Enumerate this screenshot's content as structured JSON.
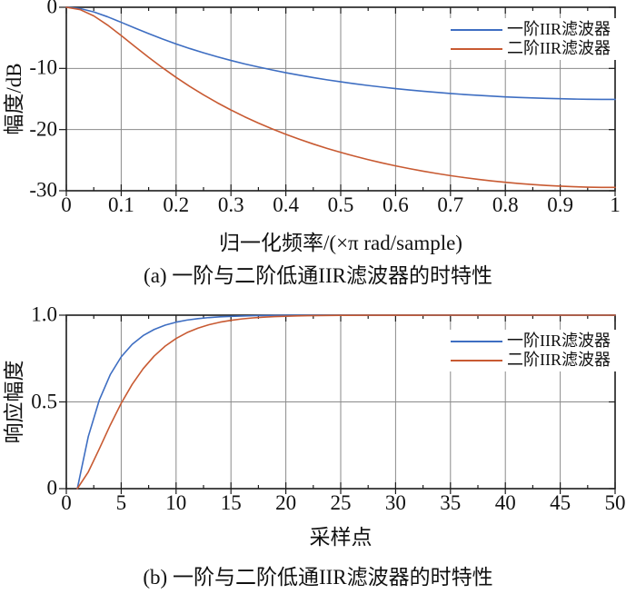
{
  "colors": {
    "background": "#ffffff",
    "axis": "#1c1c1c",
    "grid": "#8a8a8a",
    "first_order": "#3e6ec2",
    "second_order": "#c85a32"
  },
  "chart_data": [
    {
      "id": "iir-magnitude-response",
      "type": "line",
      "title": "",
      "xlabel": "归一化频率/(×π rad/sample)",
      "ylabel": "幅度/dB",
      "caption": "(a) 一阶与二阶低通IIR滤波器的时特性",
      "xlim": [
        0,
        1
      ],
      "ylim": [
        -30,
        0
      ],
      "grid": true,
      "legend_position": "top-right",
      "minor_tick_step_x": 0.05,
      "x_ticks": {
        "values": [
          0,
          0.1,
          0.2,
          0.3,
          0.4,
          0.5,
          0.6,
          0.7,
          0.8,
          0.9,
          1
        ],
        "labels": [
          "0",
          "0.1",
          "0.2",
          "0.3",
          "0.4",
          "0.5",
          "0.6",
          "0.7",
          "0.8",
          "0.9",
          "1"
        ]
      },
      "y_ticks": {
        "values": [
          0,
          -10,
          -20,
          -30
        ],
        "labels": [
          "0",
          "-10",
          "-20",
          "-30"
        ]
      },
      "series": [
        {
          "name": "一阶IIR滤波器",
          "color": "#3e6ec2",
          "x": [
            0,
            0.025,
            0.05,
            0.075,
            0.1,
            0.125,
            0.15,
            0.175,
            0.2,
            0.225,
            0.25,
            0.275,
            0.3,
            0.325,
            0.35,
            0.375,
            0.4,
            0.425,
            0.45,
            0.475,
            0.5,
            0.525,
            0.55,
            0.575,
            0.6,
            0.625,
            0.65,
            0.675,
            0.7,
            0.725,
            0.75,
            0.775,
            0.8,
            0.825,
            0.85,
            0.875,
            0.9,
            0.925,
            0.95,
            0.975,
            1
          ],
          "y": [
            0,
            -0.2,
            -0.76,
            -1.55,
            -2.46,
            -3.39,
            -4.31,
            -5.18,
            -5.99,
            -6.75,
            -7.45,
            -8.1,
            -8.7,
            -9.26,
            -9.77,
            -10.25,
            -10.7,
            -11.11,
            -11.5,
            -11.86,
            -12.19,
            -12.5,
            -12.79,
            -13.05,
            -13.3,
            -13.52,
            -13.73,
            -13.92,
            -14.1,
            -14.26,
            -14.4,
            -14.53,
            -14.65,
            -14.75,
            -14.83,
            -14.9,
            -14.96,
            -15.01,
            -15.04,
            -15.06,
            -15.07
          ]
        },
        {
          "name": "二阶IIR滤波器",
          "color": "#c85a32",
          "x": [
            0,
            0.025,
            0.05,
            0.075,
            0.1,
            0.125,
            0.15,
            0.175,
            0.2,
            0.225,
            0.25,
            0.275,
            0.3,
            0.325,
            0.35,
            0.375,
            0.4,
            0.425,
            0.45,
            0.475,
            0.5,
            0.525,
            0.55,
            0.575,
            0.6,
            0.625,
            0.65,
            0.675,
            0.7,
            0.725,
            0.75,
            0.775,
            0.8,
            0.825,
            0.85,
            0.875,
            0.9,
            0.925,
            0.95,
            0.975,
            1
          ],
          "y": [
            0,
            -0.38,
            -1.41,
            -2.9,
            -4.62,
            -6.42,
            -8.18,
            -9.87,
            -11.46,
            -12.95,
            -14.33,
            -15.61,
            -16.8,
            -17.91,
            -18.93,
            -19.88,
            -20.77,
            -21.59,
            -22.36,
            -23.07,
            -23.73,
            -24.34,
            -24.91,
            -25.44,
            -25.93,
            -26.38,
            -26.8,
            -27.18,
            -27.53,
            -27.85,
            -28.14,
            -28.39,
            -28.62,
            -28.82,
            -28.99,
            -29.14,
            -29.25,
            -29.34,
            -29.41,
            -29.45,
            -29.46
          ]
        }
      ]
    },
    {
      "id": "iir-step-response",
      "type": "line",
      "title": "",
      "xlabel": "采样点",
      "ylabel": "响应幅度",
      "caption": "(b) 一阶与二阶低通IIR滤波器的时特性",
      "xlim": [
        0,
        50
      ],
      "ylim": [
        0,
        1
      ],
      "grid": true,
      "legend_position": "top-right",
      "minor_tick_step_x": 2.5,
      "x_ticks": {
        "values": [
          0,
          5,
          10,
          15,
          20,
          25,
          30,
          35,
          40,
          45,
          50
        ],
        "labels": [
          "0",
          "5",
          "10",
          "15",
          "20",
          "25",
          "30",
          "35",
          "40",
          "45",
          "50"
        ]
      },
      "y_ticks": {
        "values": [
          1,
          0.5,
          0
        ],
        "labels": [
          "1.0",
          "0.5",
          "0"
        ]
      },
      "series": [
        {
          "name": "一阶IIR滤波器",
          "color": "#3e6ec2",
          "x": [
            1,
            2,
            3,
            4,
            5,
            6,
            7,
            8,
            9,
            10,
            11,
            12,
            13,
            14,
            15,
            16,
            17,
            18,
            19,
            20,
            21,
            22,
            23,
            24,
            25,
            26,
            27,
            28,
            29,
            30,
            31,
            32,
            33,
            34,
            35,
            36,
            37,
            38,
            39,
            40,
            41,
            42,
            43,
            44,
            45,
            46,
            47,
            48,
            49,
            50
          ],
          "y": [
            0,
            0.3,
            0.51,
            0.657,
            0.7599,
            0.8319,
            0.8824,
            0.9176,
            0.9424,
            0.9596,
            0.9718,
            0.9802,
            0.9862,
            0.9903,
            0.9932,
            0.9953,
            0.9967,
            0.9977,
            0.9984,
            0.9989,
            0.9992,
            0.9994,
            0.9996,
            0.9997,
            0.9998,
            0.9999,
            0.9999,
            0.9999,
            1,
            1,
            1,
            1,
            1,
            1,
            1,
            1,
            1,
            1,
            1,
            1,
            1,
            1,
            1,
            1,
            1,
            1,
            1,
            1,
            1,
            1
          ]
        },
        {
          "name": "二阶IIR滤波器",
          "color": "#c85a32",
          "x": [
            1,
            2,
            3,
            4,
            5,
            6,
            7,
            8,
            9,
            10,
            11,
            12,
            13,
            14,
            15,
            16,
            17,
            18,
            19,
            20,
            21,
            22,
            23,
            24,
            25,
            26,
            27,
            28,
            29,
            30,
            31,
            32,
            33,
            34,
            35,
            36,
            37,
            38,
            39,
            40,
            41,
            42,
            43,
            44,
            45,
            46,
            47,
            48,
            49,
            50
          ],
          "y": [
            0,
            0.0961,
            0.2287,
            0.366,
            0.4923,
            0.6012,
            0.6914,
            0.764,
            0.8212,
            0.8656,
            0.8997,
            0.9256,
            0.945,
            0.9596,
            0.9704,
            0.9784,
            0.9843,
            0.9886,
            0.9917,
            0.994,
            0.9957,
            0.9969,
            0.9978,
            0.9984,
            0.9989,
            0.9992,
            0.9994,
            0.9996,
            0.9997,
            0.9998,
            0.9999,
            0.9999,
            1,
            1,
            1,
            1,
            1,
            1,
            1,
            1,
            1,
            1,
            1,
            1,
            1,
            1,
            1,
            1,
            1,
            1
          ]
        }
      ]
    }
  ]
}
